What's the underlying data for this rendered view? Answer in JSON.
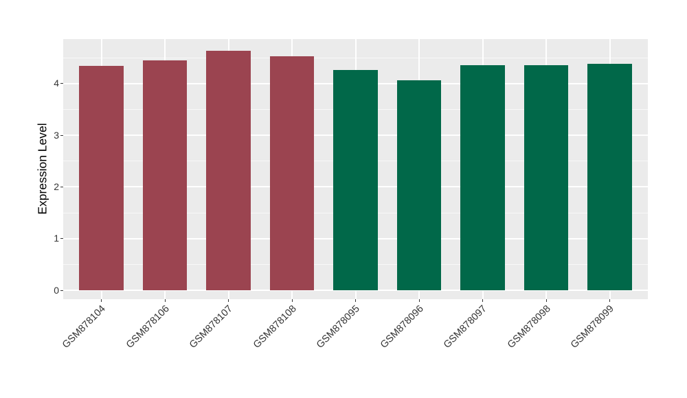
{
  "figure": {
    "background_color": "#FFFFFF",
    "panel_background_color": "#EBEBEB",
    "gridline_color": "#FFFFFF",
    "tick_color": "#333333",
    "axis_text_color": "#333333",
    "axis_title_color": "#000000"
  },
  "chart_data": {
    "type": "bar",
    "title": "",
    "xlabel": "",
    "ylabel": "Expression Level",
    "categories": [
      "GSM878104",
      "GSM878106",
      "GSM878107",
      "GSM878108",
      "GSM878095",
      "GSM878096",
      "GSM878097",
      "GSM878098",
      "GSM878099"
    ],
    "values": [
      4.34,
      4.45,
      4.63,
      4.53,
      4.26,
      4.07,
      4.36,
      4.36,
      4.38
    ],
    "bar_colors": [
      "#9B4450",
      "#9B4450",
      "#9B4450",
      "#9B4450",
      "#016849",
      "#016849",
      "#016849",
      "#016849",
      "#016849"
    ],
    "group_colors": {
      "maroon_group": "#9B4450",
      "green_group": "#016849"
    },
    "yticks": [
      0,
      1,
      2,
      3,
      4
    ],
    "ylim": [
      -0.23,
      4.86
    ],
    "grid": "on",
    "minor_grid": "on",
    "legend": "none",
    "x_label_rotation_deg": 45
  }
}
